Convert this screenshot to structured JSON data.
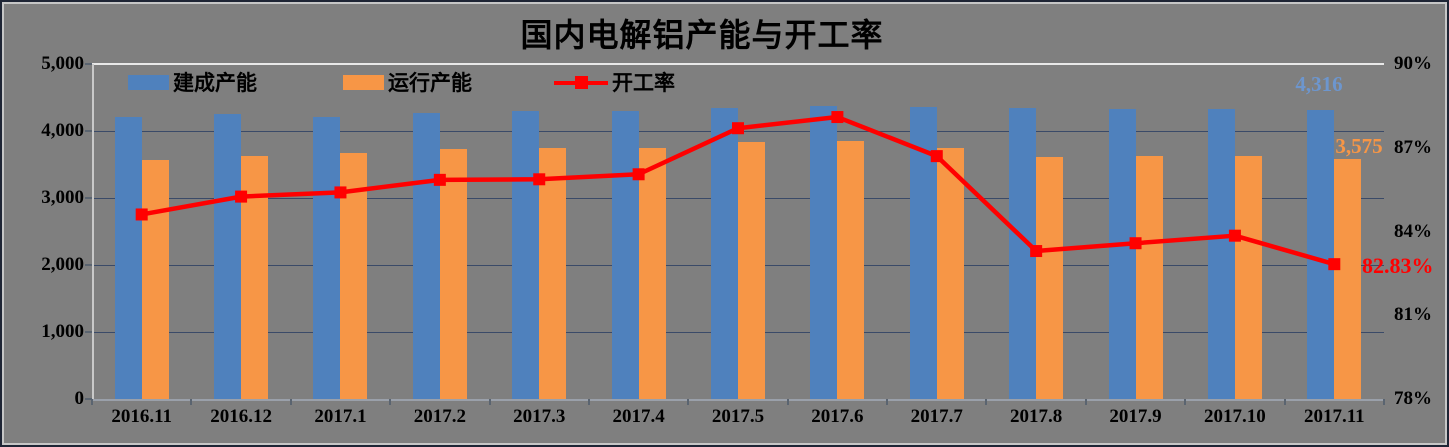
{
  "window": {
    "background": "#7F7F7F",
    "outer_border": "#1E2535",
    "inner_border": "#C6C6C6"
  },
  "chart_data": {
    "type": "bar",
    "subtype": "grouped-bars-with-line-overlay",
    "title": "国内电解铝产能与开工率",
    "categories": [
      "2016.11",
      "2016.12",
      "2017.1",
      "2017.2",
      "2017.3",
      "2017.4",
      "2017.5",
      "2017.6",
      "2017.7",
      "2017.8",
      "2017.9",
      "2017.10",
      "2017.11"
    ],
    "series": [
      {
        "name": "建成产能",
        "type": "bar",
        "axis": "left",
        "color": "#4F81BD",
        "values": [
          4210,
          4258,
          4212,
          4265,
          4298,
          4300,
          4350,
          4375,
          4352,
          4340,
          4335,
          4330,
          4316
        ]
      },
      {
        "name": "运行产能",
        "type": "bar",
        "axis": "left",
        "color": "#F79646",
        "values": [
          3570,
          3630,
          3668,
          3727,
          3743,
          3752,
          3835,
          3857,
          3743,
          3613,
          3620,
          3622,
          3575
        ]
      },
      {
        "name": "开工率",
        "type": "line",
        "axis": "right",
        "color": "#FF0000",
        "marker": "square",
        "values": [
          84.61,
          85.25,
          85.4,
          85.85,
          85.87,
          86.05,
          87.7,
          88.1,
          86.7,
          83.3,
          83.58,
          83.85,
          82.83
        ]
      }
    ],
    "left_axis": {
      "min": 0,
      "max": 5000,
      "step": 1000,
      "tick_labels": [
        "0",
        "1,000",
        "2,000",
        "3,000",
        "4,000",
        "5,000"
      ]
    },
    "right_axis": {
      "min": 78,
      "max": 90,
      "step": 3,
      "tick_labels": [
        "78%",
        "81%",
        "84%",
        "87%",
        "90%"
      ]
    },
    "grid": "horizontal",
    "legend_position": "top-left-inside",
    "annotations": [
      {
        "id": "built-last-value",
        "text": "4,316",
        "color": "#6D96CE"
      },
      {
        "id": "running-last-value",
        "text": "3,575",
        "color": "#F79646"
      },
      {
        "id": "rate-last-value",
        "text": "82.83%",
        "color": "#FF0000"
      }
    ],
    "colors": {
      "gridline": "#3A4A68",
      "top_border_line": "#E8E8E8",
      "plot_background": "#7F7F7F"
    }
  }
}
